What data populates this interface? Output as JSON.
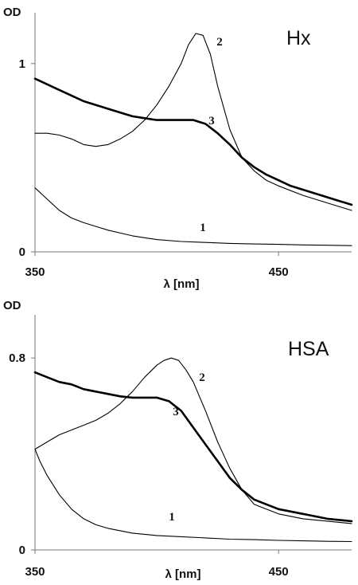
{
  "chart_data": [
    {
      "type": "line",
      "title": "Hx",
      "ylabel": "OD",
      "xlabel": "λ [nm]",
      "xlim": [
        350,
        480
      ],
      "ylim": [
        0,
        1.27
      ],
      "x_tick_labels": [
        "350",
        "450"
      ],
      "y_tick_labels": [
        "0",
        "1"
      ],
      "grid": false,
      "series": [
        {
          "name": "1",
          "line_weight": "thin",
          "x": [
            350,
            355,
            360,
            365,
            370,
            375,
            380,
            385,
            390,
            395,
            400,
            410,
            420,
            430,
            440,
            450,
            460,
            470,
            480
          ],
          "values": [
            0.34,
            0.28,
            0.22,
            0.18,
            0.155,
            0.135,
            0.115,
            0.1,
            0.085,
            0.075,
            0.065,
            0.055,
            0.05,
            0.045,
            0.042,
            0.04,
            0.037,
            0.035,
            0.033
          ]
        },
        {
          "name": "2",
          "line_weight": "thin",
          "x": [
            350,
            355,
            360,
            365,
            370,
            375,
            380,
            385,
            390,
            395,
            400,
            405,
            410,
            413,
            416,
            419,
            422,
            425,
            430,
            435,
            440,
            445,
            450,
            460,
            470,
            480
          ],
          "values": [
            0.63,
            0.63,
            0.62,
            0.6,
            0.57,
            0.56,
            0.57,
            0.6,
            0.64,
            0.7,
            0.78,
            0.88,
            1.0,
            1.1,
            1.16,
            1.15,
            1.05,
            0.88,
            0.65,
            0.5,
            0.43,
            0.38,
            0.35,
            0.3,
            0.26,
            0.22
          ]
        },
        {
          "name": "3",
          "line_weight": "thick",
          "x": [
            350,
            355,
            360,
            365,
            370,
            375,
            380,
            385,
            390,
            395,
            400,
            405,
            410,
            415,
            420,
            425,
            430,
            435,
            440,
            445,
            450,
            455,
            460,
            465,
            470,
            475,
            480
          ],
          "values": [
            0.92,
            0.89,
            0.86,
            0.83,
            0.8,
            0.78,
            0.76,
            0.74,
            0.72,
            0.71,
            0.7,
            0.7,
            0.7,
            0.7,
            0.68,
            0.63,
            0.57,
            0.5,
            0.45,
            0.41,
            0.38,
            0.35,
            0.33,
            0.31,
            0.29,
            0.27,
            0.25
          ]
        }
      ]
    },
    {
      "type": "line",
      "title": "HSA",
      "ylabel": "OD",
      "xlabel": "λ [nm]",
      "xlim": [
        350,
        480
      ],
      "ylim": [
        0,
        0.98
      ],
      "x_tick_labels": [
        "350",
        "450"
      ],
      "y_tick_labels": [
        "0",
        "0.8"
      ],
      "grid": false,
      "series": [
        {
          "name": "1",
          "line_weight": "thin",
          "x": [
            350,
            352,
            355,
            360,
            365,
            370,
            375,
            380,
            385,
            390,
            395,
            400,
            410,
            420,
            430,
            440,
            450,
            460,
            470,
            480
          ],
          "values": [
            0.42,
            0.37,
            0.31,
            0.23,
            0.17,
            0.13,
            0.105,
            0.09,
            0.08,
            0.07,
            0.065,
            0.06,
            0.055,
            0.05,
            0.045,
            0.043,
            0.04,
            0.038,
            0.036,
            0.035
          ]
        },
        {
          "name": "2",
          "line_weight": "thin",
          "x": [
            350,
            355,
            360,
            365,
            370,
            375,
            380,
            385,
            390,
            395,
            400,
            403,
            406,
            409,
            412,
            415,
            420,
            425,
            430,
            435,
            440,
            450,
            460,
            470,
            480
          ],
          "values": [
            0.42,
            0.45,
            0.48,
            0.5,
            0.52,
            0.54,
            0.57,
            0.61,
            0.66,
            0.72,
            0.77,
            0.79,
            0.8,
            0.79,
            0.75,
            0.7,
            0.58,
            0.45,
            0.34,
            0.25,
            0.19,
            0.15,
            0.13,
            0.12,
            0.11
          ]
        },
        {
          "name": "3",
          "line_weight": "thick",
          "x": [
            350,
            355,
            360,
            365,
            370,
            375,
            380,
            385,
            390,
            395,
            400,
            405,
            410,
            415,
            420,
            425,
            430,
            435,
            440,
            445,
            450,
            460,
            470,
            480
          ],
          "values": [
            0.74,
            0.72,
            0.7,
            0.69,
            0.67,
            0.66,
            0.65,
            0.64,
            0.635,
            0.635,
            0.635,
            0.62,
            0.58,
            0.51,
            0.44,
            0.37,
            0.3,
            0.25,
            0.21,
            0.19,
            0.17,
            0.15,
            0.13,
            0.12
          ]
        }
      ]
    }
  ]
}
